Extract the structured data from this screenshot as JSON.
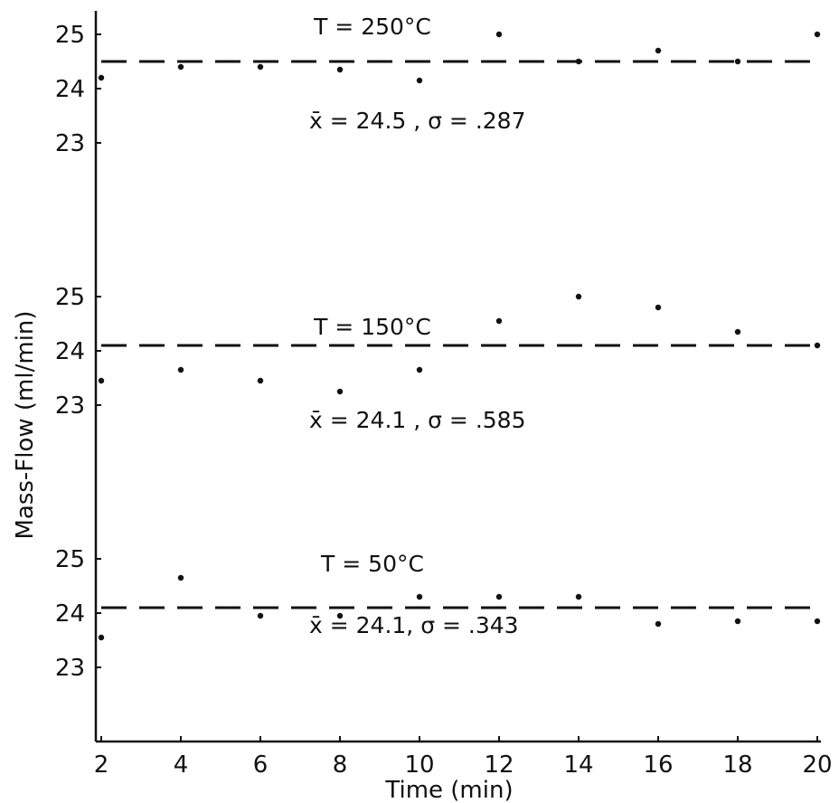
{
  "chart_data": {
    "type": "scatter",
    "title": "",
    "xlabel": "Time (min)",
    "ylabel": "Mass-Flow (ml/min)",
    "xlim": [
      2,
      20
    ],
    "x_ticks": [
      "2",
      "4",
      "6",
      "8",
      "10",
      "12",
      "14",
      "16",
      "18",
      "20"
    ],
    "grid": false,
    "panels": [
      {
        "temperature_label": "T = 250°C",
        "stats_label": "x̄ = 24.5 , σ = .287",
        "mean": 24.5,
        "y_ticks": [
          "23",
          "24",
          "25"
        ],
        "ylim": [
          23,
          25
        ],
        "x": [
          2,
          4,
          6,
          8,
          10,
          12,
          14,
          16,
          18,
          20
        ],
        "values": [
          24.2,
          24.4,
          24.4,
          24.35,
          24.15,
          25.0,
          24.5,
          24.7,
          24.5,
          25.0
        ]
      },
      {
        "temperature_label": "T = 150°C",
        "stats_label": "x̄ = 24.1 , σ = .585",
        "mean": 24.1,
        "y_ticks": [
          "23",
          "24",
          "25"
        ],
        "ylim": [
          23,
          25
        ],
        "x": [
          2,
          4,
          6,
          8,
          10,
          12,
          14,
          16,
          18,
          20
        ],
        "values": [
          23.45,
          23.65,
          23.45,
          23.25,
          23.65,
          24.55,
          25.0,
          24.8,
          24.35,
          24.1
        ]
      },
      {
        "temperature_label": "T = 50°C",
        "stats_label": "x̄ = 24.1, σ = .343",
        "mean": 24.1,
        "y_ticks": [
          "23",
          "24",
          "25"
        ],
        "ylim": [
          23,
          25
        ],
        "x": [
          2,
          4,
          6,
          8,
          10,
          12,
          14,
          16,
          18,
          20
        ],
        "values": [
          23.55,
          24.65,
          23.95,
          23.95,
          24.3,
          24.3,
          24.3,
          23.8,
          23.85,
          23.85
        ]
      }
    ]
  }
}
